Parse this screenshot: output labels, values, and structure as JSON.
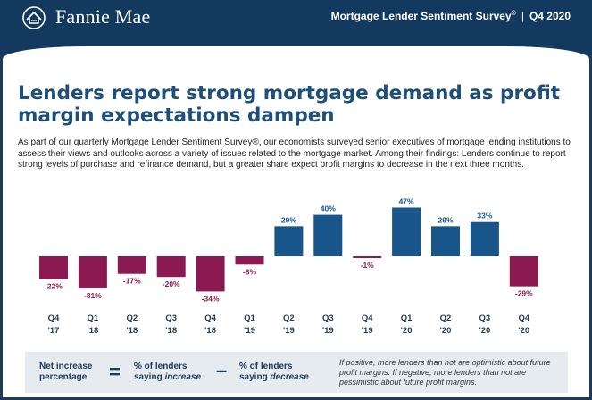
{
  "header": {
    "brand": "Fannie Mae",
    "survey": "Mortgage Lender Sentiment Survey",
    "survey_mark": "®",
    "period": "Q4 2020"
  },
  "headline": "Lenders report strong mortgage demand as profit margin expectations dampen",
  "intro": {
    "before": "As part of our quarterly ",
    "link": "Mortgage Lender Sentiment Survey®",
    "after": ", our economists surveyed senior executives of mortgage lending institutions to assess their views and outlooks across a variety of issues related to the mortgage market. Among their findings: Lenders continue to report strong levels of purchase and refinance demand, but a greater share expect profit margins to decrease in the next three months."
  },
  "colors": {
    "positive": "#17558a",
    "negative": "#8c1a52",
    "navy": "#133a5e"
  },
  "chart_data": {
    "type": "bar",
    "categories": [
      {
        "q": "Q4",
        "y": "'17"
      },
      {
        "q": "Q1",
        "y": "'18"
      },
      {
        "q": "Q2",
        "y": "'18"
      },
      {
        "q": "Q3",
        "y": "'18"
      },
      {
        "q": "Q4",
        "y": "'18"
      },
      {
        "q": "Q1",
        "y": "'19"
      },
      {
        "q": "Q2",
        "y": "'19"
      },
      {
        "q": "Q3",
        "y": "'19"
      },
      {
        "q": "Q4",
        "y": "'19"
      },
      {
        "q": "Q1",
        "y": "'20"
      },
      {
        "q": "Q2",
        "y": "'20"
      },
      {
        "q": "Q3",
        "y": "'20"
      },
      {
        "q": "Q4",
        "y": "'20"
      }
    ],
    "values": [
      -22,
      -31,
      -17,
      -20,
      -34,
      -8,
      29,
      40,
      -1,
      47,
      29,
      33,
      -29
    ],
    "data_labels": [
      "-22%",
      "-31%",
      "-17%",
      "-20%",
      "-34%",
      "-8%",
      "29%",
      "40%",
      "-1%",
      "47%",
      "29%",
      "33%",
      "-29%"
    ],
    "ylim": [
      -34,
      47
    ]
  },
  "legend": {
    "term1": "Net increase",
    "term2": "percentage",
    "equals": "=",
    "inc1": "% of lenders",
    "inc2_prefix": "saying ",
    "inc2_em": "increase",
    "minus": "–",
    "dec1": "% of lenders",
    "dec2_prefix": "saying ",
    "dec2_em": "decrease",
    "note": "If positive, more lenders than not are optimistic about future profit margins. If negative, more lenders than not are pessimistic about future profit margins."
  }
}
